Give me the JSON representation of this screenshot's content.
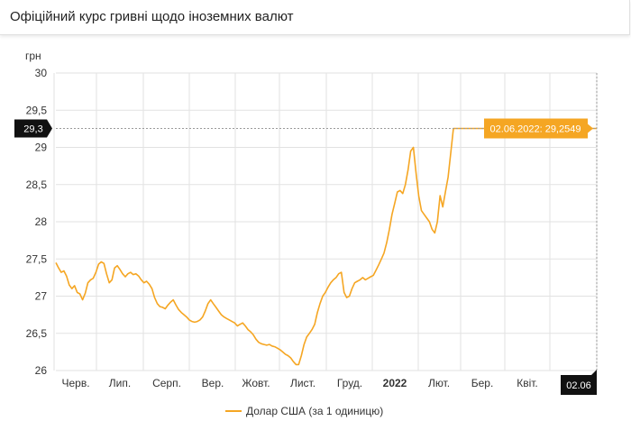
{
  "header": {
    "title": "Офіційний курс гривні щодо іноземних валют"
  },
  "colors": {
    "series": "#f5a623",
    "crosshair_badge": "#111111",
    "grid": "#e2e2e2"
  },
  "chart_data": {
    "type": "line",
    "title": "Офіційний курс гривні щодо іноземних валют",
    "ylabel": "грн",
    "ylim": [
      26,
      30
    ],
    "yticks": [
      "30",
      "29,5",
      "29",
      "28,5",
      "28",
      "27,5",
      "27",
      "26,5",
      "26"
    ],
    "xticks": [
      {
        "label": "Черв.",
        "bold": false
      },
      {
        "label": "Лип.",
        "bold": false
      },
      {
        "label": "Серп.",
        "bold": false
      },
      {
        "label": "Вер.",
        "bold": false
      },
      {
        "label": "Жовт.",
        "bold": false
      },
      {
        "label": "Лист.",
        "bold": false
      },
      {
        "label": "Груд.",
        "bold": false
      },
      {
        "label": "2022",
        "bold": true
      },
      {
        "label": "Лют.",
        "bold": false
      },
      {
        "label": "Бер.",
        "bold": false
      },
      {
        "label": "Квіт.",
        "bold": false
      }
    ],
    "grid": true,
    "legend_position": "bottom-center",
    "crosshair": {
      "y_value": 29.2549,
      "y_label": "29,3",
      "x_label": "02.06",
      "tooltip": "02.06.2022: 29,2549"
    },
    "series": [
      {
        "name": "Долар США (за 1 одиницю)",
        "points": [
          [
            0,
            27.45
          ],
          [
            1,
            27.38
          ],
          [
            2,
            27.32
          ],
          [
            3,
            27.34
          ],
          [
            4,
            27.27
          ],
          [
            5,
            27.15
          ],
          [
            6,
            27.1
          ],
          [
            7,
            27.14
          ],
          [
            8,
            27.05
          ],
          [
            9,
            27.03
          ],
          [
            10,
            26.95
          ],
          [
            11,
            27.04
          ],
          [
            12,
            27.18
          ],
          [
            13,
            27.22
          ],
          [
            14,
            27.24
          ],
          [
            15,
            27.32
          ],
          [
            16,
            27.43
          ],
          [
            17,
            27.46
          ],
          [
            18,
            27.44
          ],
          [
            19,
            27.3
          ],
          [
            20,
            27.18
          ],
          [
            21,
            27.22
          ],
          [
            22,
            27.38
          ],
          [
            23,
            27.41
          ],
          [
            24,
            27.36
          ],
          [
            25,
            27.3
          ],
          [
            26,
            27.26
          ],
          [
            27,
            27.3
          ],
          [
            28,
            27.32
          ],
          [
            29,
            27.29
          ],
          [
            30,
            27.3
          ],
          [
            31,
            27.27
          ],
          [
            32,
            27.22
          ],
          [
            33,
            27.18
          ],
          [
            34,
            27.2
          ],
          [
            35,
            27.16
          ],
          [
            36,
            27.1
          ],
          [
            37,
            26.98
          ],
          [
            38,
            26.9
          ],
          [
            39,
            26.86
          ],
          [
            40,
            26.85
          ],
          [
            41,
            26.83
          ],
          [
            42,
            26.88
          ],
          [
            43,
            26.92
          ],
          [
            44,
            26.95
          ],
          [
            45,
            26.88
          ],
          [
            46,
            26.82
          ],
          [
            47,
            26.78
          ],
          [
            48,
            26.75
          ],
          [
            49,
            26.72
          ],
          [
            50,
            26.68
          ],
          [
            51,
            26.66
          ],
          [
            52,
            26.65
          ],
          [
            53,
            26.66
          ],
          [
            54,
            26.68
          ],
          [
            55,
            26.72
          ],
          [
            56,
            26.8
          ],
          [
            57,
            26.9
          ],
          [
            58,
            26.95
          ],
          [
            59,
            26.9
          ],
          [
            60,
            26.85
          ],
          [
            61,
            26.8
          ],
          [
            62,
            26.75
          ],
          [
            63,
            26.72
          ],
          [
            64,
            26.7
          ],
          [
            65,
            26.68
          ],
          [
            66,
            26.66
          ],
          [
            67,
            26.64
          ],
          [
            68,
            26.6
          ],
          [
            69,
            26.62
          ],
          [
            70,
            26.64
          ],
          [
            71,
            26.6
          ],
          [
            72,
            26.55
          ],
          [
            73,
            26.52
          ],
          [
            74,
            26.48
          ],
          [
            75,
            26.42
          ],
          [
            76,
            26.38
          ],
          [
            77,
            26.36
          ],
          [
            78,
            26.35
          ],
          [
            79,
            26.34
          ],
          [
            80,
            26.35
          ],
          [
            81,
            26.33
          ],
          [
            82,
            26.32
          ],
          [
            83,
            26.3
          ],
          [
            84,
            26.28
          ],
          [
            85,
            26.25
          ],
          [
            86,
            26.22
          ],
          [
            87,
            26.2
          ],
          [
            88,
            26.17
          ],
          [
            89,
            26.12
          ],
          [
            90,
            26.08
          ],
          [
            91,
            26.08
          ],
          [
            92,
            26.2
          ],
          [
            93,
            26.35
          ],
          [
            94,
            26.45
          ],
          [
            95,
            26.5
          ],
          [
            96,
            26.55
          ],
          [
            97,
            26.62
          ],
          [
            98,
            26.78
          ],
          [
            99,
            26.9
          ],
          [
            100,
            27.0
          ],
          [
            101,
            27.05
          ],
          [
            102,
            27.12
          ],
          [
            103,
            27.18
          ],
          [
            104,
            27.22
          ],
          [
            105,
            27.25
          ],
          [
            106,
            27.3
          ],
          [
            107,
            27.32
          ],
          [
            108,
            27.05
          ],
          [
            109,
            26.98
          ],
          [
            110,
            27.0
          ],
          [
            111,
            27.1
          ],
          [
            112,
            27.18
          ],
          [
            113,
            27.2
          ],
          [
            114,
            27.22
          ],
          [
            115,
            27.25
          ],
          [
            116,
            27.22
          ],
          [
            117,
            27.24
          ],
          [
            118,
            27.26
          ],
          [
            119,
            27.28
          ],
          [
            120,
            27.35
          ],
          [
            121,
            27.42
          ],
          [
            122,
            27.5
          ],
          [
            123,
            27.58
          ],
          [
            124,
            27.72
          ],
          [
            125,
            27.9
          ],
          [
            126,
            28.1
          ],
          [
            127,
            28.25
          ],
          [
            128,
            28.4
          ],
          [
            129,
            28.42
          ],
          [
            130,
            28.38
          ],
          [
            131,
            28.5
          ],
          [
            132,
            28.7
          ],
          [
            133,
            28.95
          ],
          [
            134,
            29.0
          ],
          [
            135,
            28.65
          ],
          [
            136,
            28.35
          ],
          [
            137,
            28.15
          ],
          [
            138,
            28.1
          ],
          [
            139,
            28.05
          ],
          [
            140,
            28.0
          ],
          [
            141,
            27.9
          ],
          [
            142,
            27.85
          ],
          [
            143,
            28.0
          ],
          [
            144,
            28.35
          ],
          [
            145,
            28.2
          ],
          [
            146,
            28.4
          ],
          [
            147,
            28.6
          ],
          [
            148,
            28.92
          ],
          [
            149,
            29.255
          ],
          [
            150,
            29.255
          ],
          [
            151,
            29.255
          ],
          [
            152,
            29.255
          ],
          [
            153,
            29.255
          ],
          [
            154,
            29.255
          ],
          [
            155,
            29.255
          ],
          [
            156,
            29.255
          ],
          [
            157,
            29.255
          ]
        ]
      }
    ]
  }
}
